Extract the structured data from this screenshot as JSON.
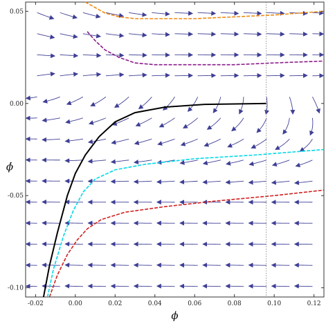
{
  "chart_data": {
    "type": "stream",
    "xlabel": "ϕ",
    "ylabel": "ϕ̇",
    "xlim": [
      -0.025,
      0.125
    ],
    "ylim": [
      -0.105,
      0.055
    ],
    "x_ticks": [
      -0.02,
      0.0,
      0.02,
      0.04,
      0.06,
      0.08,
      0.1,
      0.12
    ],
    "x_tick_labels": [
      "-0.02",
      "0.00",
      "0.02",
      "0.04",
      "0.06",
      "0.08",
      "0.10",
      "0.12"
    ],
    "y_ticks": [
      0.05,
      0.0,
      -0.05,
      -0.1
    ],
    "y_tick_labels": [
      "0.05",
      "0.00",
      "-0.05",
      "-0.10"
    ],
    "vertical_reference_line": {
      "x": 0.096,
      "style": "dotted"
    },
    "grid": false,
    "field_color": "#3f3f96",
    "series": [
      {
        "color": "#000000",
        "style": "solid",
        "points": [
          [
            -0.016,
            -0.105
          ],
          [
            -0.013,
            -0.088
          ],
          [
            -0.009,
            -0.07
          ],
          [
            -0.004,
            -0.05
          ],
          [
            0.0,
            -0.038
          ],
          [
            0.005,
            -0.028
          ],
          [
            0.012,
            -0.018
          ],
          [
            0.02,
            -0.01
          ],
          [
            0.03,
            -0.005
          ],
          [
            0.045,
            -0.002
          ],
          [
            0.065,
            -0.0005
          ],
          [
            0.096,
            0.0
          ]
        ]
      },
      {
        "color": "#00d8e8",
        "style": "dashed",
        "points": [
          [
            -0.014,
            -0.105
          ],
          [
            -0.011,
            -0.09
          ],
          [
            -0.006,
            -0.072
          ],
          [
            -0.001,
            -0.058
          ],
          [
            0.004,
            -0.048
          ],
          [
            0.01,
            -0.041
          ],
          [
            0.02,
            -0.036
          ],
          [
            0.035,
            -0.033
          ],
          [
            0.06,
            -0.03
          ],
          [
            0.09,
            -0.028
          ],
          [
            0.125,
            -0.025
          ]
        ]
      },
      {
        "color": "#d02020",
        "style": "dashed",
        "points": [
          [
            -0.013,
            -0.105
          ],
          [
            -0.009,
            -0.093
          ],
          [
            -0.004,
            -0.082
          ],
          [
            0.001,
            -0.074
          ],
          [
            0.006,
            -0.068
          ],
          [
            0.013,
            -0.063
          ],
          [
            0.025,
            -0.059
          ],
          [
            0.045,
            -0.056
          ],
          [
            0.07,
            -0.053
          ],
          [
            0.1,
            -0.05
          ],
          [
            0.125,
            -0.047
          ]
        ]
      },
      {
        "color": "#8a1a8a",
        "style": "dashed",
        "points": [
          [
            0.006,
            0.039
          ],
          [
            0.01,
            0.034
          ],
          [
            0.015,
            0.029
          ],
          [
            0.022,
            0.025
          ],
          [
            0.03,
            0.022
          ],
          [
            0.04,
            0.021
          ],
          [
            0.06,
            0.021
          ],
          [
            0.08,
            0.021
          ],
          [
            0.1,
            0.022
          ],
          [
            0.125,
            0.023
          ]
        ]
      },
      {
        "color": "#f08a10",
        "style": "dashed",
        "points": [
          [
            0.005,
            0.055
          ],
          [
            0.01,
            0.052
          ],
          [
            0.015,
            0.049
          ],
          [
            0.022,
            0.047
          ],
          [
            0.03,
            0.046
          ],
          [
            0.045,
            0.046
          ],
          [
            0.06,
            0.046
          ],
          [
            0.08,
            0.047
          ],
          [
            0.1,
            0.048
          ],
          [
            0.125,
            0.05
          ]
        ]
      }
    ]
  }
}
